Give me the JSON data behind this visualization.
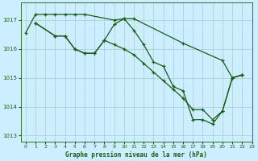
{
  "xlabel": "Graphe pression niveau de la mer (hPa)",
  "bg_color": "#cceeff",
  "grid_color": "#aacccc",
  "line_color": "#1a5c1a",
  "xlim": [
    -0.5,
    23
  ],
  "ylim": [
    1012.8,
    1017.6
  ],
  "yticks": [
    1013,
    1014,
    1015,
    1016,
    1017
  ],
  "xticks": [
    0,
    1,
    2,
    3,
    4,
    5,
    6,
    7,
    8,
    9,
    10,
    11,
    12,
    13,
    14,
    15,
    16,
    17,
    18,
    19,
    20,
    21,
    22,
    23
  ],
  "series1": [
    [
      0,
      1016.55
    ],
    [
      1,
      1017.2
    ],
    [
      2,
      1017.2
    ],
    [
      3,
      1017.2
    ],
    [
      4,
      1017.2
    ],
    [
      5,
      1017.2
    ],
    [
      6,
      1017.2
    ],
    [
      9,
      1017.0
    ],
    [
      10,
      1017.05
    ],
    [
      11,
      1017.05
    ],
    [
      16,
      1016.2
    ],
    [
      20,
      1015.6
    ],
    [
      21,
      1015.0
    ],
    [
      22,
      1015.1
    ]
  ],
  "series2": [
    [
      1,
      1016.9
    ],
    [
      3,
      1016.45
    ],
    [
      4,
      1016.45
    ],
    [
      5,
      1016.0
    ],
    [
      6,
      1015.85
    ],
    [
      7,
      1015.85
    ],
    [
      8,
      1016.3
    ],
    [
      9,
      1016.15
    ],
    [
      10,
      1016.0
    ],
    [
      11,
      1015.8
    ],
    [
      12,
      1015.5
    ],
    [
      13,
      1015.2
    ],
    [
      14,
      1014.9
    ],
    [
      15,
      1014.6
    ],
    [
      16,
      1014.3
    ],
    [
      17,
      1013.9
    ],
    [
      18,
      1013.9
    ],
    [
      19,
      1013.55
    ],
    [
      20,
      1013.85
    ],
    [
      21,
      1015.0
    ],
    [
      22,
      1015.1
    ]
  ],
  "series3": [
    [
      1,
      1016.9
    ],
    [
      3,
      1016.45
    ],
    [
      4,
      1016.45
    ],
    [
      5,
      1016.0
    ],
    [
      6,
      1015.85
    ],
    [
      7,
      1015.85
    ],
    [
      8,
      1016.3
    ],
    [
      9,
      1016.85
    ],
    [
      10,
      1017.05
    ],
    [
      11,
      1016.65
    ],
    [
      12,
      1016.15
    ],
    [
      13,
      1015.55
    ],
    [
      14,
      1015.4
    ],
    [
      15,
      1014.7
    ],
    [
      16,
      1014.55
    ],
    [
      17,
      1013.55
    ],
    [
      18,
      1013.55
    ],
    [
      19,
      1013.4
    ],
    [
      20,
      1013.85
    ],
    [
      21,
      1015.0
    ],
    [
      22,
      1015.1
    ]
  ]
}
